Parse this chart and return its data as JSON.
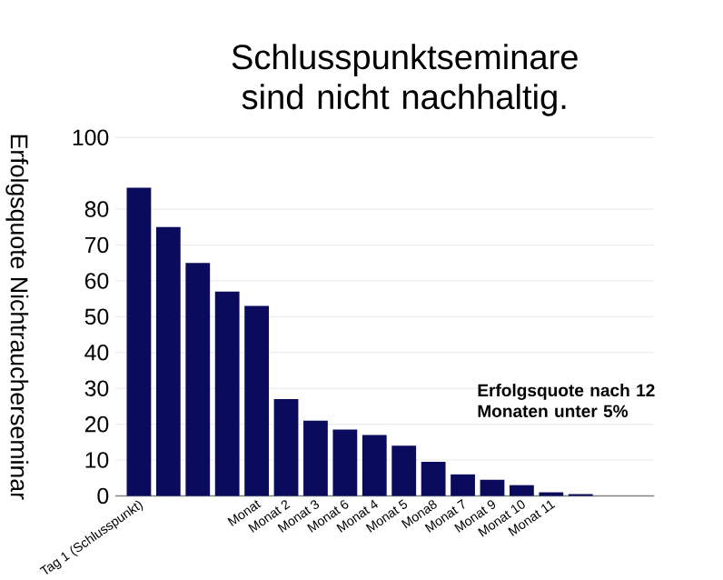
{
  "chart_data": {
    "type": "bar",
    "title": "Schlusspunktseminare sind nicht nachhaltig.",
    "ylabel": "Erfolgsquote Nichtraucherseminar",
    "categories": [
      "Tag 1 (Schlusspunkt)",
      null,
      null,
      null,
      "Monat",
      "Monat 2",
      "Monat 3",
      "Monat 6",
      "Monat 4",
      "Monat 5",
      "Mona8",
      "Monat 7",
      "Monat 9",
      "Monat 10",
      "Monat 11",
      null
    ],
    "values": [
      86,
      75,
      65,
      57,
      53,
      27,
      21,
      18.5,
      17,
      14,
      9.5,
      6,
      4.5,
      3,
      1,
      0.5
    ],
    "color": "#0b0b5e",
    "ylim": [
      0,
      100
    ],
    "yticks": [
      0,
      10,
      20,
      30,
      40,
      50,
      60,
      70,
      80,
      100
    ],
    "grid": "y",
    "annotations": [
      "**Erfolgsquote nach 12 Monaten unter 5%**"
    ]
  }
}
